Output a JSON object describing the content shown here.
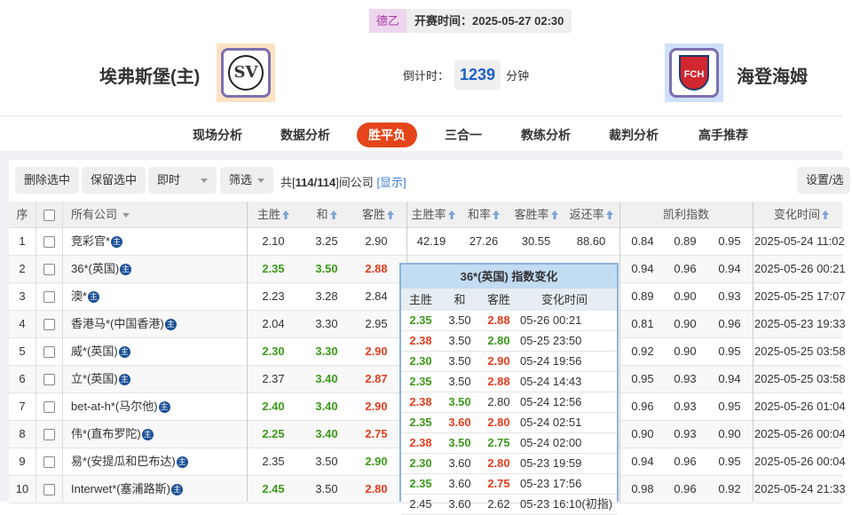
{
  "match": {
    "league": "德乙",
    "kickoff_label": "开赛时间：2025-05-27 02:30",
    "home": "埃弗斯堡(主)",
    "away": "海登海姆",
    "home_logo_text": "SV",
    "away_logo_text": "FCH",
    "countdown_label": "倒计时：",
    "countdown": "1239",
    "countdown_unit": "分钟"
  },
  "nav": [
    "现场分析",
    "数据分析",
    "胜平负",
    "三合一",
    "教练分析",
    "裁判分析",
    "高手推荐"
  ],
  "nav_active": "胜平负",
  "toolbar": {
    "delete": "删除选中",
    "keep": "保留选中",
    "mode": "即时",
    "filter": "筛选",
    "count_pre": "共[",
    "count": "114/114",
    "count_post": "]间公司",
    "show": "[显示]",
    "settings": "设置/选"
  },
  "headers": {
    "seq": "序",
    "company": "所有公司",
    "home": "主胜",
    "draw": "和",
    "away": "客胜",
    "home_rate": "主胜率",
    "draw_rate": "和率",
    "away_rate": "客胜率",
    "return_rate": "返还率",
    "kelly": "凯利指数",
    "time": "变化时间"
  },
  "badge": "主",
  "colors": {
    "accent": "#e5451a",
    "up": "#3d9a1b",
    "down": "#e33e1f",
    "link": "#1c5fc4"
  },
  "rows": [
    {
      "n": "1",
      "name": "竞彩官*",
      "h": "2.10",
      "d": "3.25",
      "a": "2.90",
      "hc": "",
      "dc": "",
      "ac": "",
      "hr": "42.19",
      "dr": "27.26",
      "ar": "30.55",
      "rr": "88.60",
      "k1": "0.84",
      "k2": "0.89",
      "k3": "0.95",
      "t": "2025-05-24 11:02"
    },
    {
      "n": "2",
      "name": "36*(英国)",
      "h": "2.35",
      "d": "3.50",
      "a": "2.88",
      "hc": "g",
      "dc": "g",
      "ac": "r",
      "k1": "0.94",
      "k2": "0.96",
      "k3": "0.94",
      "t": "2025-05-26 00:21"
    },
    {
      "n": "3",
      "name": "澳*",
      "h": "2.23",
      "d": "3.28",
      "a": "2.84",
      "hc": "",
      "dc": "",
      "ac": "",
      "k1": "0.89",
      "k2": "0.90",
      "k3": "0.93",
      "t": "2025-05-25 17:07"
    },
    {
      "n": "4",
      "name": "香港马*(中国香港)",
      "h": "2.04",
      "d": "3.30",
      "a": "2.95",
      "hc": "",
      "dc": "",
      "ac": "",
      "k1": "0.81",
      "k2": "0.90",
      "k3": "0.96",
      "t": "2025-05-23 19:33"
    },
    {
      "n": "5",
      "name": "威*(英国)",
      "h": "2.30",
      "d": "3.30",
      "a": "2.90",
      "hc": "g",
      "dc": "g",
      "ac": "r",
      "k1": "0.92",
      "k2": "0.90",
      "k3": "0.95",
      "t": "2025-05-25 03:58"
    },
    {
      "n": "6",
      "name": "立*(英国)",
      "h": "2.37",
      "d": "3.40",
      "a": "2.87",
      "hc": "",
      "dc": "g",
      "ac": "r",
      "k1": "0.95",
      "k2": "0.93",
      "k3": "0.94",
      "t": "2025-05-25 03:58"
    },
    {
      "n": "7",
      "name": "bet-at-h*(马尔他)",
      "h": "2.40",
      "d": "3.40",
      "a": "2.90",
      "hc": "g",
      "dc": "g",
      "ac": "r",
      "k1": "0.96",
      "k2": "0.93",
      "k3": "0.95",
      "t": "2025-05-26 01:04"
    },
    {
      "n": "8",
      "name": "伟*(直布罗陀)",
      "h": "2.25",
      "d": "3.40",
      "a": "2.75",
      "hc": "g",
      "dc": "g",
      "ac": "r",
      "k1": "0.90",
      "k2": "0.93",
      "k3": "0.90",
      "t": "2025-05-26 00:04"
    },
    {
      "n": "9",
      "name": "易*(安提瓜和巴布达)",
      "h": "2.35",
      "d": "3.50",
      "a": "2.90",
      "hc": "",
      "dc": "",
      "ac": "g",
      "k1": "0.94",
      "k2": "0.96",
      "k3": "0.95",
      "t": "2025-05-26 00:04"
    },
    {
      "n": "10",
      "name": "Interwet*(塞浦路斯)",
      "h": "2.45",
      "d": "3.50",
      "a": "2.80",
      "hc": "g",
      "dc": "",
      "ac": "r",
      "k1": "0.98",
      "k2": "0.96",
      "k3": "0.92",
      "t": "2025-05-24 21:33"
    }
  ],
  "popup": {
    "title": "36*(英国) 指数变化",
    "headers": [
      "主胜",
      "和",
      "客胜",
      "变化时间"
    ],
    "rows": [
      {
        "h": "2.35",
        "d": "3.50",
        "a": "2.88",
        "hc": "g",
        "dc": "",
        "ac": "r",
        "t": "05-26 00:21"
      },
      {
        "h": "2.38",
        "d": "3.50",
        "a": "2.80",
        "hc": "r",
        "dc": "",
        "ac": "g",
        "t": "05-25 23:50"
      },
      {
        "h": "2.30",
        "d": "3.50",
        "a": "2.90",
        "hc": "g",
        "dc": "",
        "ac": "r",
        "t": "05-24 19:56"
      },
      {
        "h": "2.35",
        "d": "3.50",
        "a": "2.88",
        "hc": "g",
        "dc": "",
        "ac": "r",
        "t": "05-24 14:43"
      },
      {
        "h": "2.38",
        "d": "3.50",
        "a": "2.80",
        "hc": "r",
        "dc": "g",
        "ac": "",
        "t": "05-24 12:56"
      },
      {
        "h": "2.35",
        "d": "3.60",
        "a": "2.80",
        "hc": "g",
        "dc": "r",
        "ac": "r",
        "t": "05-24 02:51"
      },
      {
        "h": "2.38",
        "d": "3.50",
        "a": "2.75",
        "hc": "r",
        "dc": "g",
        "ac": "g",
        "t": "05-24 02:00"
      },
      {
        "h": "2.30",
        "d": "3.60",
        "a": "2.80",
        "hc": "g",
        "dc": "",
        "ac": "r",
        "t": "05-23 19:59"
      },
      {
        "h": "2.35",
        "d": "3.60",
        "a": "2.75",
        "hc": "g",
        "dc": "",
        "ac": "r",
        "t": "05-23 17:56"
      },
      {
        "h": "2.45",
        "d": "3.60",
        "a": "2.62",
        "hc": "",
        "dc": "",
        "ac": "",
        "t": "05-23 16:10(初指)"
      }
    ]
  }
}
